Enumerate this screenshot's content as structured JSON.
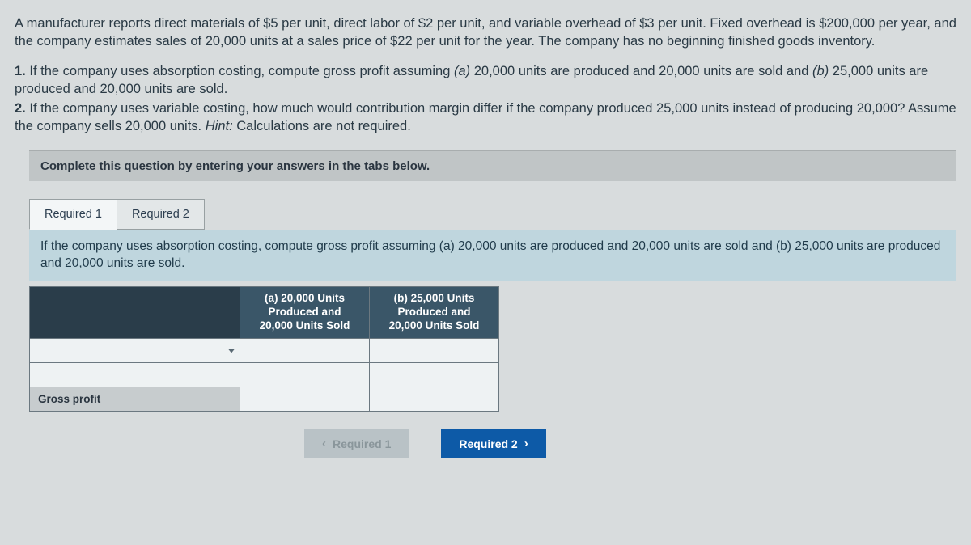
{
  "colors": {
    "page_bg": "#d8dcdd",
    "text": "#2a3a45",
    "instruction_bg": "#c0c5c6",
    "tab_active_bg": "#f3f6f7",
    "tab_inactive_bg": "#e3e7e8",
    "tab_border": "#98a0a2",
    "tab_desc_bg": "#bfd6de",
    "table_header_bg": "#3a5668",
    "table_header_text": "#ffffff",
    "table_rowlabel_bg": "#c7ccce",
    "table_cell_bg": "#eef2f3",
    "nav_prev_bg": "#b9c2c6",
    "nav_prev_text": "#8a969b",
    "nav_next_bg": "#0d5aa7",
    "nav_next_text": "#ffffff"
  },
  "problem": {
    "para1": "A manufacturer reports direct materials of $5 per unit, direct labor of $2 per unit, and variable overhead of $3 per unit. Fixed overhead is $200,000 per year, and the company estimates sales of 20,000 units at a sales price of $22 per unit for the year. The company has no beginning finished goods inventory.",
    "q1_prefix": "1. ",
    "q1_body_a": "If the company uses absorption costing, compute gross profit assuming ",
    "q1_a_label": "(a)",
    "q1_a_text": " 20,000 units are produced and 20,000 units are sold and ",
    "q1_b_label": "(b)",
    "q1_b_text": " 25,000 units are produced and 20,000 units are sold.",
    "q2_prefix": "2. ",
    "q2_body": "If the company uses variable costing, how much would contribution margin differ if the company produced 25,000 units instead of producing 20,000? Assume the company sells 20,000 units. ",
    "q2_hint_label": "Hint:",
    "q2_hint_text": " Calculations are not required."
  },
  "instruction": "Complete this question by entering your answers in the tabs below.",
  "tabs": {
    "t1": "Required 1",
    "t2": "Required 2"
  },
  "tab1": {
    "desc": "If the company uses absorption costing, compute gross profit assuming (a) 20,000 units are produced and 20,000 units are sold and (b) 25,000 units are produced and 20,000 units are sold.",
    "table": {
      "col_a_l1": "(a) 20,000 Units",
      "col_a_l2": "Produced and",
      "col_a_l3": "20,000 Units Sold",
      "col_b_l1": "(b) 25,000 Units",
      "col_b_l2": "Produced and",
      "col_b_l3": "20,000 Units Sold",
      "row_gross_profit": "Gross profit"
    }
  },
  "nav": {
    "prev": "Required 1",
    "next": "Required 2"
  }
}
